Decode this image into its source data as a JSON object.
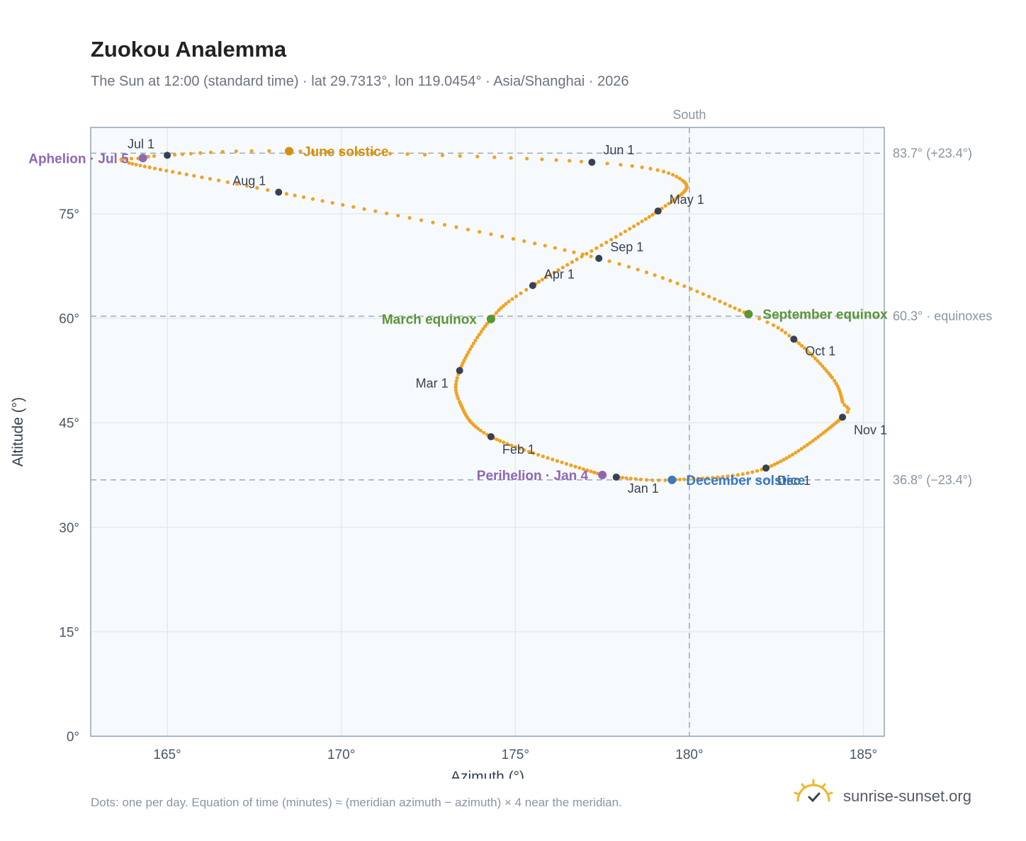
{
  "title": "Zuokou Analemma",
  "subtitle": "The Sun at 12:00 (standard time) · lat 29.7313°, lon 119.0454° · Asia/Shanghai · 2026",
  "footnote": "Dots: one per day. Equation of time (minutes) ≈ (meridian azimuth − azimuth) × 4 near the meridian.",
  "brand": {
    "name": "sunrise-sunset.org",
    "icon": "sun-logo-icon"
  },
  "colors": {
    "path": "#f0a325",
    "month_dot": "#374151",
    "solstice_june": "#d4900c",
    "equinox": "#5a9634",
    "solstice_december": "#3a78c2",
    "apsis": "#8f68b4",
    "guide": "#9aabb9",
    "frame": "#94a3b8",
    "plot_bg": "#f7fafd"
  },
  "chart_data": {
    "type": "scatter",
    "xlabel": "Azimuth (°)",
    "ylabel": "Altitude (°)",
    "xlim": [
      162.8,
      185.6
    ],
    "ylim": [
      0,
      87.4
    ],
    "xticks": [
      {
        "value": 165,
        "label": "165°"
      },
      {
        "value": 170,
        "label": "170°"
      },
      {
        "value": 175,
        "label": "175°"
      },
      {
        "value": 180,
        "label": "180°"
      },
      {
        "value": 185,
        "label": "185°"
      }
    ],
    "yticks": [
      {
        "value": 0,
        "label": "0°"
      },
      {
        "value": 15,
        "label": "15°"
      },
      {
        "value": 30,
        "label": "30°"
      },
      {
        "value": 45,
        "label": "45°"
      },
      {
        "value": 60,
        "label": "60°"
      },
      {
        "value": 75,
        "label": "75°"
      }
    ],
    "grid": true,
    "reference_lines": {
      "vertical": {
        "value": 180,
        "label": "South"
      },
      "horizontal": [
        {
          "value": 83.7,
          "label": "83.7° (+23.4°)"
        },
        {
          "value": 60.3,
          "label": "60.3° · equinoxes"
        },
        {
          "value": 36.8,
          "label": "36.8° (−23.4°)"
        }
      ]
    },
    "path_knots": [
      {
        "day": 1,
        "az": 177.9,
        "alt": 37.2
      },
      {
        "day": 4,
        "az": 177.5,
        "alt": 37.5
      },
      {
        "day": 32,
        "az": 174.3,
        "alt": 43.0
      },
      {
        "day": 50,
        "az": 173.4,
        "alt": 48.0
      },
      {
        "day": 60,
        "az": 173.4,
        "alt": 52.5
      },
      {
        "day": 79,
        "az": 174.3,
        "alt": 59.9
      },
      {
        "day": 91,
        "az": 175.5,
        "alt": 64.7
      },
      {
        "day": 121,
        "az": 179.1,
        "alt": 75.4
      },
      {
        "day": 140,
        "az": 179.8,
        "alt": 79.8
      },
      {
        "day": 152,
        "az": 177.2,
        "alt": 82.4
      },
      {
        "day": 172,
        "az": 168.5,
        "alt": 84.0
      },
      {
        "day": 182,
        "az": 165.0,
        "alt": 83.4
      },
      {
        "day": 186,
        "az": 164.3,
        "alt": 83.0
      },
      {
        "day": 192,
        "az": 163.9,
        "alt": 82.3
      },
      {
        "day": 213,
        "az": 168.2,
        "alt": 78.1
      },
      {
        "day": 244,
        "az": 177.4,
        "alt": 68.6
      },
      {
        "day": 266,
        "az": 181.7,
        "alt": 60.6
      },
      {
        "day": 274,
        "az": 183.0,
        "alt": 57.0
      },
      {
        "day": 290,
        "az": 184.1,
        "alt": 51.5
      },
      {
        "day": 300,
        "az": 184.4,
        "alt": 48.0
      },
      {
        "day": 305,
        "az": 184.4,
        "alt": 45.8
      },
      {
        "day": 335,
        "az": 182.2,
        "alt": 38.5
      },
      {
        "day": 355,
        "az": 179.5,
        "alt": 36.8
      },
      {
        "day": 366,
        "az": 177.9,
        "alt": 37.2
      }
    ],
    "month_points": [
      {
        "label": "Jan 1",
        "az": 177.9,
        "alt": 37.2
      },
      {
        "label": "Feb 1",
        "az": 174.3,
        "alt": 43.0
      },
      {
        "label": "Mar 1",
        "az": 173.4,
        "alt": 52.5
      },
      {
        "label": "Apr 1",
        "az": 175.5,
        "alt": 64.7
      },
      {
        "label": "May 1",
        "az": 179.1,
        "alt": 75.4
      },
      {
        "label": "Jun 1",
        "az": 177.2,
        "alt": 82.4
      },
      {
        "label": "Jul 1",
        "az": 165.0,
        "alt": 83.4
      },
      {
        "label": "Aug 1",
        "az": 168.2,
        "alt": 78.1
      },
      {
        "label": "Sep 1",
        "az": 177.4,
        "alt": 68.6
      },
      {
        "label": "Oct 1",
        "az": 183.0,
        "alt": 57.0
      },
      {
        "label": "Nov 1",
        "az": 184.4,
        "alt": 45.8
      },
      {
        "label": "Dec 1",
        "az": 182.2,
        "alt": 38.5
      }
    ],
    "events": [
      {
        "label": "June solstice",
        "az": 168.5,
        "alt": 84.0,
        "kind": "solstice_june"
      },
      {
        "label": "March equinox",
        "az": 174.3,
        "alt": 59.9,
        "kind": "equinox"
      },
      {
        "label": "September equinox",
        "az": 181.7,
        "alt": 60.6,
        "kind": "equinox"
      },
      {
        "label": "December solstice",
        "az": 179.5,
        "alt": 36.8,
        "kind": "solstice_december"
      },
      {
        "label": "Aphelion · Jul 5",
        "az": 164.3,
        "alt": 83.0,
        "kind": "apsis"
      },
      {
        "label": "Perihelion · Jan 4",
        "az": 177.5,
        "alt": 37.5,
        "kind": "apsis"
      }
    ]
  }
}
